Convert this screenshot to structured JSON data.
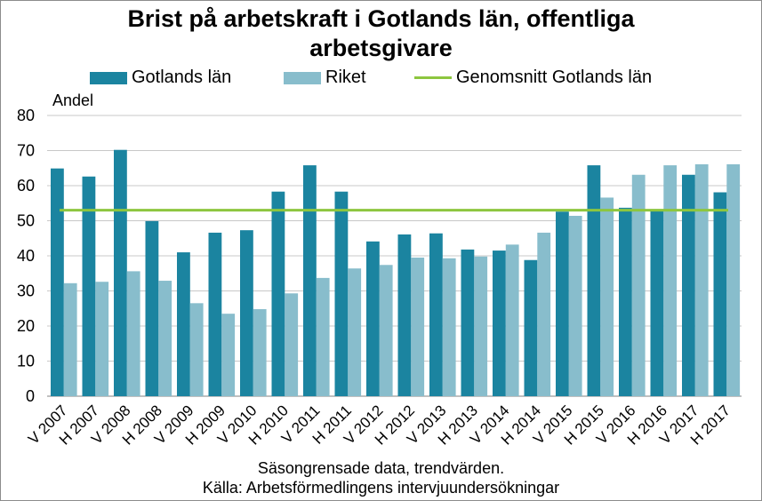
{
  "colors": {
    "gotland": "#1b84a0",
    "riket": "#88bdcc",
    "average": "#8dc63f",
    "grid": "#c8c8c8",
    "axis": "#808080"
  },
  "chart_data": {
    "type": "bar",
    "title_line1": "Brist på arbetskraft i Gotlands län, offentliga",
    "title_line2": "arbetsgivare",
    "ylabel": "Andel",
    "ylim": [
      0,
      80
    ],
    "yticks": [
      0,
      10,
      20,
      30,
      40,
      50,
      60,
      70,
      80
    ],
    "grid": true,
    "legend_position": "top",
    "categories": [
      "V 2007",
      "H 2007",
      "V 2008",
      "H 2008",
      "V 2009",
      "H 2009",
      "V 2010",
      "H 2010",
      "V 2011",
      "H 2011",
      "V 2012",
      "H 2012",
      "V 2013",
      "H 2013",
      "V 2014",
      "H 2014",
      "V 2015",
      "H 2015",
      "V 2016",
      "H 2016",
      "V 2017",
      "H 2017"
    ],
    "series": [
      {
        "name": "Gotlands län",
        "values": [
          64.9,
          62.6,
          70.2,
          49.9,
          41.0,
          46.6,
          47.3,
          58.3,
          65.8,
          58.3,
          44.1,
          46.1,
          46.4,
          41.8,
          41.5,
          38.8,
          52.6,
          65.8,
          53.7,
          53.3,
          63.1,
          58.1
        ]
      },
      {
        "name": "Riket",
        "values": [
          32.2,
          32.6,
          35.6,
          32.9,
          26.5,
          23.5,
          24.8,
          29.3,
          33.7,
          36.4,
          37.4,
          39.5,
          39.3,
          39.8,
          43.2,
          46.6,
          51.4,
          56.6,
          63.1,
          65.8,
          66.1,
          66.1
        ]
      }
    ],
    "average": {
      "name": "Genomsnitt Gotlands län",
      "value": 53.0
    },
    "footnote1": "Säsongrensade data, trendvärden.",
    "footnote2": "Källa: Arbetsförmedlingens intervjuundersökningar"
  }
}
